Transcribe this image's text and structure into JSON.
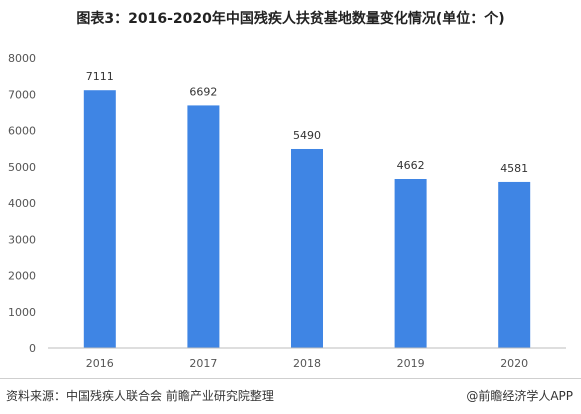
{
  "chart_data": {
    "type": "bar",
    "title": "图表3：2016-2020年中国残疾人扶贫基地数量变化情况(单位：个)",
    "categories": [
      "2016",
      "2017",
      "2018",
      "2019",
      "2020"
    ],
    "values": [
      7111,
      6692,
      5490,
      4662,
      4581
    ],
    "ylim": [
      0,
      8000
    ],
    "yticks": [
      0,
      1000,
      2000,
      3000,
      4000,
      5000,
      6000,
      7000,
      8000
    ],
    "xlabel": "",
    "ylabel": "",
    "grid": false,
    "bar_color": "#3f85e4"
  },
  "footer": {
    "source": "资料来源：中国残疾人联合会 前瞻产业研究院整理",
    "brand": "@前瞻经济学人APP"
  }
}
